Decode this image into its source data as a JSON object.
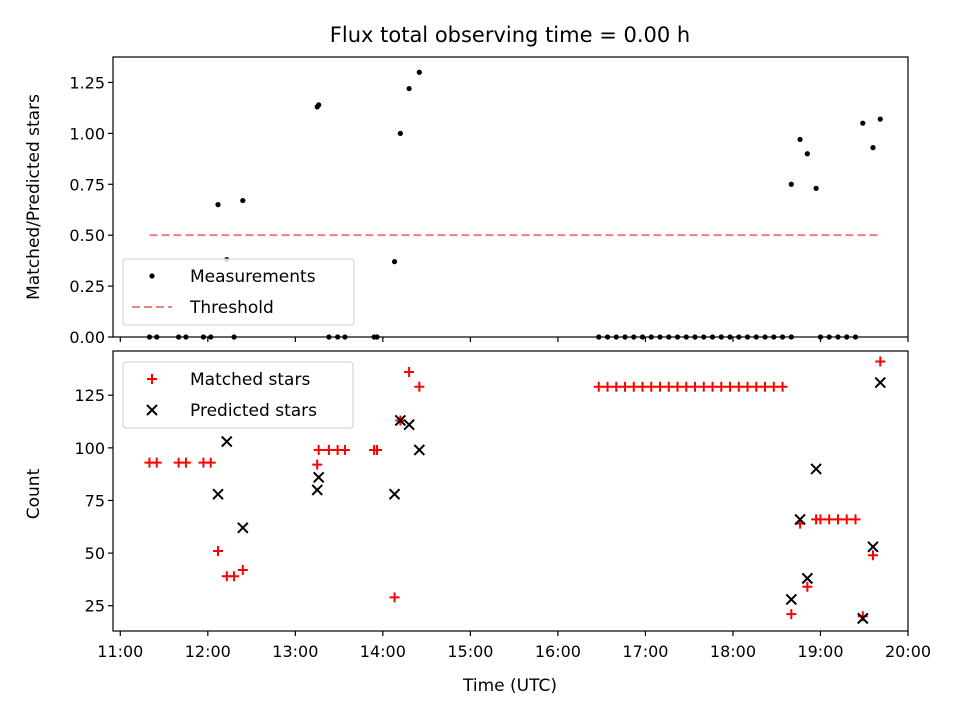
{
  "chart_data": [
    {
      "type": "scatter",
      "title": "Flux total observing time = 0.00 h",
      "xlabel": "",
      "ylabel": "Matched/Predicted stars",
      "xlim": [
        "11:00",
        "20:00"
      ],
      "ylim": [
        0,
        1.375
      ],
      "yticks": [
        "0.00",
        "0.25",
        "0.50",
        "0.75",
        "1.00",
        "1.25"
      ],
      "legend_position": "lower-left",
      "series": [
        {
          "name": "Measurements",
          "marker": "dot",
          "color": "#000000",
          "points": [
            [
              "11:20",
              0
            ],
            [
              "11:25",
              0
            ],
            [
              "11:40",
              0
            ],
            [
              "11:45",
              0
            ],
            [
              "11:57",
              0
            ],
            [
              "12:02",
              0
            ],
            [
              "12:07",
              0.65
            ],
            [
              "12:13",
              0.38
            ],
            [
              "12:18",
              0
            ],
            [
              "12:24",
              0.67
            ],
            [
              "13:15",
              1.13
            ],
            [
              "13:16",
              1.14
            ],
            [
              "13:23",
              0
            ],
            [
              "13:29",
              0
            ],
            [
              "13:34",
              0
            ],
            [
              "13:54",
              0
            ],
            [
              "13:56",
              0
            ],
            [
              "14:08",
              0.37
            ],
            [
              "14:12",
              1.0
            ],
            [
              "14:18",
              1.22
            ],
            [
              "14:25",
              1.3
            ],
            [
              "16:28",
              0
            ],
            [
              "16:34",
              0
            ],
            [
              "16:40",
              0
            ],
            [
              "16:46",
              0
            ],
            [
              "16:52",
              0
            ],
            [
              "16:58",
              0
            ],
            [
              "17:04",
              0
            ],
            [
              "17:10",
              0
            ],
            [
              "17:16",
              0
            ],
            [
              "17:22",
              0
            ],
            [
              "17:28",
              0
            ],
            [
              "17:34",
              0
            ],
            [
              "17:40",
              0
            ],
            [
              "17:46",
              0
            ],
            [
              "17:52",
              0
            ],
            [
              "17:58",
              0
            ],
            [
              "18:04",
              0
            ],
            [
              "18:10",
              0
            ],
            [
              "18:16",
              0
            ],
            [
              "18:22",
              0
            ],
            [
              "18:28",
              0
            ],
            [
              "18:34",
              0
            ],
            [
              "18:40",
              0
            ],
            [
              "18:40",
              0.75
            ],
            [
              "18:46",
              0.97
            ],
            [
              "18:51",
              0.9
            ],
            [
              "18:57",
              0.73
            ],
            [
              "19:00",
              0
            ],
            [
              "19:06",
              0
            ],
            [
              "19:12",
              0
            ],
            [
              "19:18",
              0
            ],
            [
              "19:24",
              0
            ],
            [
              "19:29",
              1.05
            ],
            [
              "19:36",
              0.93
            ],
            [
              "19:41",
              1.07
            ]
          ]
        },
        {
          "name": "Threshold",
          "marker": "dashed-line",
          "color": "#f08080",
          "points": [
            [
              "11:20",
              0.5
            ],
            [
              "19:41",
              0.5
            ]
          ]
        }
      ]
    },
    {
      "type": "scatter",
      "title": "",
      "xlabel": "Time (UTC)",
      "ylabel": "Count",
      "xlim": [
        "11:00",
        "20:00"
      ],
      "ylim": [
        13,
        146
      ],
      "xticks": [
        "11:00",
        "12:00",
        "13:00",
        "14:00",
        "15:00",
        "16:00",
        "17:00",
        "18:00",
        "19:00",
        "20:00"
      ],
      "yticks": [
        "25",
        "50",
        "75",
        "100",
        "125"
      ],
      "legend_position": "upper-left",
      "series": [
        {
          "name": "Matched stars",
          "marker": "plus",
          "color": "#ff0000",
          "points": [
            [
              "11:20",
              93
            ],
            [
              "11:25",
              93
            ],
            [
              "11:40",
              93
            ],
            [
              "11:45",
              93
            ],
            [
              "11:57",
              93
            ],
            [
              "12:02",
              93
            ],
            [
              "12:07",
              51
            ],
            [
              "12:13",
              39
            ],
            [
              "12:18",
              39
            ],
            [
              "12:24",
              42
            ],
            [
              "13:15",
              92
            ],
            [
              "13:16",
              99
            ],
            [
              "13:23",
              99
            ],
            [
              "13:29",
              99
            ],
            [
              "13:34",
              99
            ],
            [
              "13:54",
              99
            ],
            [
              "13:56",
              99
            ],
            [
              "14:08",
              29
            ],
            [
              "14:12",
              113
            ],
            [
              "14:18",
              136
            ],
            [
              "14:25",
              129
            ],
            [
              "16:28",
              129
            ],
            [
              "16:34",
              129
            ],
            [
              "16:40",
              129
            ],
            [
              "16:46",
              129
            ],
            [
              "16:52",
              129
            ],
            [
              "16:58",
              129
            ],
            [
              "17:04",
              129
            ],
            [
              "17:10",
              129
            ],
            [
              "17:16",
              129
            ],
            [
              "17:22",
              129
            ],
            [
              "17:28",
              129
            ],
            [
              "17:34",
              129
            ],
            [
              "17:40",
              129
            ],
            [
              "17:46",
              129
            ],
            [
              "17:52",
              129
            ],
            [
              "17:58",
              129
            ],
            [
              "18:04",
              129
            ],
            [
              "18:10",
              129
            ],
            [
              "18:16",
              129
            ],
            [
              "18:22",
              129
            ],
            [
              "18:28",
              129
            ],
            [
              "18:34",
              129
            ],
            [
              "18:40",
              21
            ],
            [
              "18:46",
              64
            ],
            [
              "18:51",
              34
            ],
            [
              "18:57",
              66
            ],
            [
              "19:00",
              66
            ],
            [
              "19:06",
              66
            ],
            [
              "19:12",
              66
            ],
            [
              "19:18",
              66
            ],
            [
              "19:24",
              66
            ],
            [
              "19:29",
              20
            ],
            [
              "19:36",
              49
            ],
            [
              "19:41",
              141
            ]
          ]
        },
        {
          "name": "Predicted stars",
          "marker": "x",
          "color": "#000000",
          "points": [
            [
              "12:07",
              78
            ],
            [
              "12:13",
              103
            ],
            [
              "12:24",
              62
            ],
            [
              "13:15",
              80
            ],
            [
              "13:16",
              86
            ],
            [
              "14:08",
              78
            ],
            [
              "14:12",
              113
            ],
            [
              "14:18",
              111
            ],
            [
              "14:25",
              99
            ],
            [
              "18:40",
              28
            ],
            [
              "18:46",
              66
            ],
            [
              "18:51",
              38
            ],
            [
              "18:57",
              90
            ],
            [
              "19:29",
              19
            ],
            [
              "19:36",
              53
            ],
            [
              "19:41",
              131
            ]
          ]
        }
      ]
    }
  ]
}
